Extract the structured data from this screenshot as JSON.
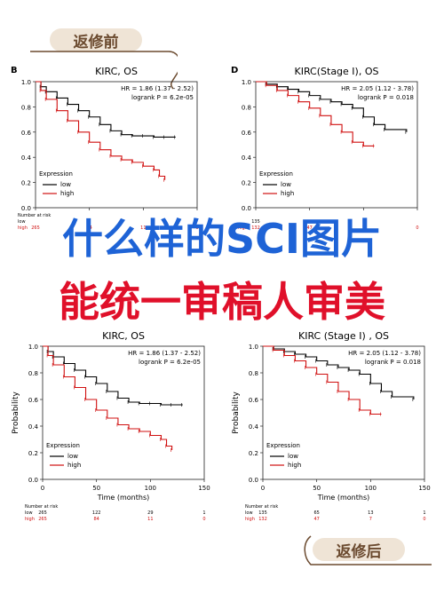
{
  "before_label": "返修前",
  "after_label": "返修后",
  "headline_1": "什么样的SCI图片",
  "headline_2": "能统一审稿人审美",
  "colors": {
    "blue_text": "#1e63d6",
    "red_text": "#e0102a",
    "low_line": "#000000",
    "high_line": "#d01010",
    "pill_bg": "#efe4d6"
  },
  "panels": [
    {
      "letter": "B",
      "title": "KIRC, OS",
      "hr": "HR = 1.86 (1.37 - 2.52)",
      "p": "logrank P = 6.2e-05",
      "legend_title": "Expression",
      "legend_low": "low",
      "legend_high": "high",
      "risk_label": "Number at risk",
      "low_label": "low",
      "high_label": "high",
      "risk_low": [
        "",
        "",
        "",
        "",
        ""
      ],
      "risk_high": [
        "265",
        "84",
        "11",
        "0",
        ""
      ]
    },
    {
      "letter": "D",
      "title": "KIRC(Stage I), OS",
      "hr": "HR = 2.05 (1.12 - 3.78)",
      "p": "logrank P = 0.018",
      "legend_title": "Expression",
      "legend_low": "low",
      "legend_high": "high",
      "risk_label": "",
      "low_label": "",
      "high_label": "high",
      "risk_low": [
        "135",
        "",
        "",
        "",
        ""
      ],
      "risk_high": [
        "132",
        "47",
        "7",
        "0",
        ""
      ]
    },
    {
      "letter": "",
      "title": "KIRC, OS",
      "hr": "HR = 1.86 (1.37 - 2.52)",
      "p": "logrank P = 6.2e-05",
      "legend_title": "Expression",
      "legend_low": "low",
      "legend_high": "high",
      "ylabel": "Probability",
      "xlabel": "Time (months)",
      "risk_label": "Number at risk",
      "low_label": "low",
      "high_label": "high",
      "risk_low": [
        "265",
        "122",
        "29",
        "1"
      ],
      "risk_high": [
        "265",
        "84",
        "11",
        "0"
      ]
    },
    {
      "letter": "",
      "title": "KIRC (Stage I) , OS",
      "hr": "HR = 2.05 (1.12 - 3.78)",
      "p": "logrank P = 0.018",
      "legend_title": "Expression",
      "legend_low": "low",
      "legend_high": "high",
      "ylabel": "Probability",
      "xlabel": "Time (months)",
      "risk_label": "Number at risk",
      "low_label": "low",
      "high_label": "high",
      "risk_low": [
        "135",
        "65",
        "13",
        "1"
      ],
      "risk_high": [
        "132",
        "47",
        "7",
        "0"
      ]
    }
  ],
  "chart_data": [
    {
      "type": "line",
      "title": "KIRC, OS",
      "xlim": [
        0,
        150
      ],
      "ylim": [
        0,
        1
      ],
      "x_ticks": [
        "0",
        "50",
        "100",
        "150"
      ],
      "y_ticks": [
        "0.0",
        "0.2",
        "0.4",
        "0.6",
        "0.8",
        "1.0"
      ],
      "series": [
        {
          "name": "low",
          "x": [
            0,
            5,
            10,
            20,
            30,
            40,
            50,
            60,
            70,
            80,
            90,
            100,
            110,
            120,
            130
          ],
          "y": [
            1,
            0.96,
            0.92,
            0.87,
            0.82,
            0.77,
            0.72,
            0.66,
            0.61,
            0.58,
            0.57,
            0.57,
            0.56,
            0.56,
            0.56
          ]
        },
        {
          "name": "high",
          "x": [
            0,
            5,
            10,
            20,
            30,
            40,
            50,
            60,
            70,
            80,
            90,
            100,
            110,
            115,
            120
          ],
          "y": [
            1,
            0.93,
            0.86,
            0.77,
            0.69,
            0.6,
            0.52,
            0.46,
            0.41,
            0.38,
            0.36,
            0.33,
            0.3,
            0.25,
            0.22
          ]
        }
      ]
    },
    {
      "type": "line",
      "title": "KIRC(Stage I), OS",
      "xlim": [
        0,
        150
      ],
      "ylim": [
        0,
        1
      ],
      "x_ticks": [
        "0",
        "50",
        "100",
        "150"
      ],
      "y_ticks": [
        "0.0",
        "0.2",
        "0.4",
        "0.6",
        "0.8",
        "1.0"
      ],
      "series": [
        {
          "name": "low",
          "x": [
            0,
            10,
            20,
            30,
            40,
            50,
            60,
            70,
            80,
            90,
            100,
            110,
            120,
            140
          ],
          "y": [
            1,
            0.98,
            0.96,
            0.94,
            0.92,
            0.89,
            0.86,
            0.84,
            0.82,
            0.79,
            0.72,
            0.66,
            0.62,
            0.6
          ]
        },
        {
          "name": "high",
          "x": [
            0,
            10,
            20,
            30,
            40,
            50,
            60,
            70,
            80,
            90,
            100,
            110
          ],
          "y": [
            1,
            0.97,
            0.93,
            0.89,
            0.84,
            0.79,
            0.73,
            0.66,
            0.6,
            0.52,
            0.49,
            0.49
          ]
        }
      ]
    },
    {
      "type": "line",
      "title": "KIRC, OS",
      "xlabel": "Time (months)",
      "ylabel": "Probability",
      "xlim": [
        0,
        150
      ],
      "ylim": [
        0,
        1
      ],
      "x_ticks": [
        "0",
        "50",
        "100",
        "150"
      ],
      "y_ticks": [
        "0.0",
        "0.2",
        "0.4",
        "0.6",
        "0.8",
        "1.0"
      ],
      "series": [
        {
          "name": "low",
          "x": [
            0,
            5,
            10,
            20,
            30,
            40,
            50,
            60,
            70,
            80,
            90,
            100,
            110,
            120,
            130
          ],
          "y": [
            1,
            0.96,
            0.92,
            0.87,
            0.82,
            0.77,
            0.72,
            0.66,
            0.61,
            0.58,
            0.57,
            0.57,
            0.56,
            0.56,
            0.56
          ]
        },
        {
          "name": "high",
          "x": [
            0,
            5,
            10,
            20,
            30,
            40,
            50,
            60,
            70,
            80,
            90,
            100,
            110,
            115,
            120
          ],
          "y": [
            1,
            0.93,
            0.86,
            0.77,
            0.69,
            0.6,
            0.52,
            0.46,
            0.41,
            0.38,
            0.36,
            0.33,
            0.3,
            0.25,
            0.22
          ]
        }
      ]
    },
    {
      "type": "line",
      "title": "KIRC (Stage I) , OS",
      "xlabel": "Time (months)",
      "ylabel": "Probability",
      "xlim": [
        0,
        150
      ],
      "ylim": [
        0,
        1
      ],
      "x_ticks": [
        "0",
        "50",
        "100",
        "150"
      ],
      "y_ticks": [
        "0.0",
        "0.2",
        "0.4",
        "0.6",
        "0.8",
        "1.0"
      ],
      "series": [
        {
          "name": "low",
          "x": [
            0,
            10,
            20,
            30,
            40,
            50,
            60,
            70,
            80,
            90,
            100,
            110,
            120,
            140
          ],
          "y": [
            1,
            0.98,
            0.96,
            0.94,
            0.92,
            0.89,
            0.86,
            0.84,
            0.82,
            0.79,
            0.72,
            0.66,
            0.62,
            0.6
          ]
        },
        {
          "name": "high",
          "x": [
            0,
            10,
            20,
            30,
            40,
            50,
            60,
            70,
            80,
            90,
            100,
            110
          ],
          "y": [
            1,
            0.97,
            0.93,
            0.89,
            0.84,
            0.79,
            0.73,
            0.66,
            0.6,
            0.52,
            0.49,
            0.49
          ]
        }
      ]
    }
  ]
}
